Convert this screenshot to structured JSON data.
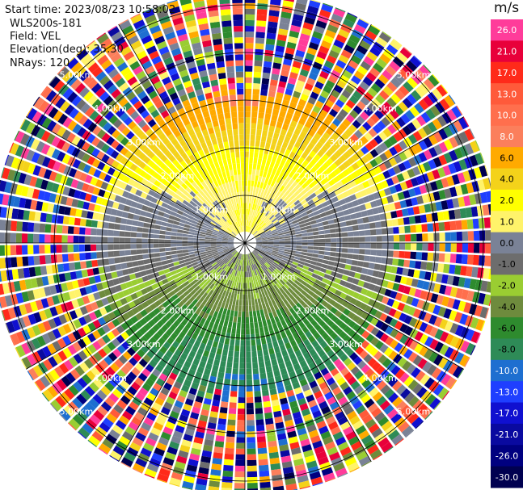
{
  "header": {
    "start_time": "Start time: 2023/08/23 10:58:02",
    "instrument": "WLS200s-181",
    "field": "Field: VEL",
    "elevation": "Elevation(deg): 35.30",
    "nrays": "NRays: 120"
  },
  "colorbar": {
    "unit": "m/s",
    "levels": [
      {
        "label": "26.0",
        "color": "#ff3c9a"
      },
      {
        "label": "21.0",
        "color": "#e8003a"
      },
      {
        "label": "17.0",
        "color": "#ff2a1a"
      },
      {
        "label": "13.0",
        "color": "#ff5a3a"
      },
      {
        "label": "10.0",
        "color": "#ff6f4d"
      },
      {
        "label": "8.0",
        "color": "#fb7f5c"
      },
      {
        "label": "6.0",
        "color": "#ffaa00"
      },
      {
        "label": "4.0",
        "color": "#f4d21a"
      },
      {
        "label": "2.0",
        "color": "#ffff00"
      },
      {
        "label": "1.0",
        "color": "#fff36a"
      },
      {
        "label": "0.0",
        "color": "#7a8296"
      },
      {
        "label": "-1.0",
        "color": "#6d6d6d"
      },
      {
        "label": "-2.0",
        "color": "#9acd32"
      },
      {
        "label": "-4.0",
        "color": "#6e8b3d"
      },
      {
        "label": "-6.0",
        "color": "#2e8b2e"
      },
      {
        "label": "-8.0",
        "color": "#2e8b57"
      },
      {
        "label": "-10.0",
        "color": "#1e6fd0"
      },
      {
        "label": "-13.0",
        "color": "#1f3fff"
      },
      {
        "label": "-17.0",
        "color": "#1010d0"
      },
      {
        "label": "-21.0",
        "color": "#0a0aa0"
      },
      {
        "label": "-26.0",
        "color": "#000080"
      },
      {
        "label": "-30.0",
        "color": "#000050"
      }
    ]
  },
  "chart_data": {
    "type": "ppi_polar",
    "field": "VEL",
    "units": "m/s",
    "elevation_deg": 35.3,
    "nrays": 120,
    "range_rings_km": [
      1.0,
      2.0,
      3.0,
      4.0,
      5.0
    ],
    "ring_labels": [
      "1.00km",
      "2.00km",
      "3.00km",
      "4.00km",
      "5.00km"
    ],
    "max_range_km": 5.3,
    "velocity_profile_by_range": [
      {
        "range_km": 0.6,
        "north": 2.0,
        "south": -1.0
      },
      {
        "range_km": 1.0,
        "north": 1.5,
        "south": -2.0
      },
      {
        "range_km": 1.5,
        "north": 2.5,
        "south": -4.0
      },
      {
        "range_km": 2.0,
        "north": 4.0,
        "south": -6.0
      },
      {
        "range_km": 2.5,
        "north": 6.0,
        "south": -7.0
      },
      {
        "range_km": 3.0,
        "north": 8.0,
        "south": -8.0
      }
    ],
    "noise_beyond_km": 3.2
  }
}
